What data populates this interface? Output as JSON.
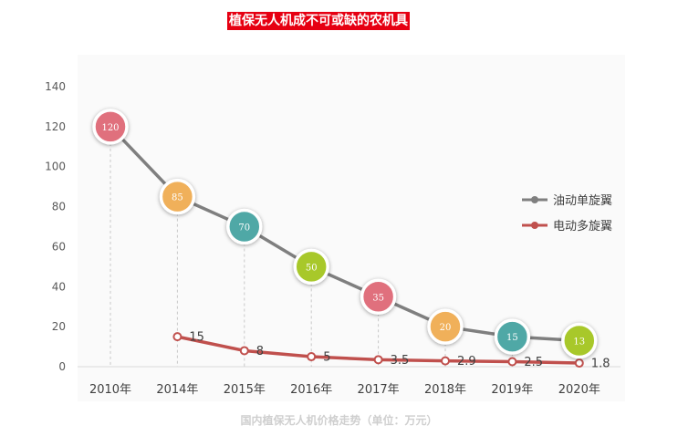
{
  "chart_data": {
    "type": "line",
    "title": "植保无人机成不可或缺的农机具",
    "caption": "国内植保无人机价格走势（单位：万元）",
    "categories": [
      "2010年",
      "2014年",
      "2015年",
      "2016年",
      "2017年",
      "2018年",
      "2019年",
      "2020年"
    ],
    "ylim": [
      0,
      140
    ],
    "yticks": [
      0,
      20,
      40,
      60,
      80,
      100,
      120,
      140
    ],
    "legend_position": "right",
    "series": [
      {
        "name": "油动单旋翼",
        "color": "#7f7f7f",
        "values": [
          120,
          85,
          70,
          50,
          35,
          20,
          15,
          13
        ],
        "labels": [
          "120",
          "85",
          "70",
          "50",
          "35",
          "20",
          "15",
          "13"
        ],
        "bubble_colors": [
          "#e0707d",
          "#f0b05a",
          "#4fa8a6",
          "#a8c82a",
          "#e0707d",
          "#f0b05a",
          "#4fa8a6",
          "#a8c82a"
        ]
      },
      {
        "name": "电动多旋翼",
        "color": "#c0504d",
        "values": [
          null,
          15,
          8,
          5,
          3.5,
          2.9,
          2.5,
          1.8
        ],
        "labels": [
          "",
          "15",
          "8",
          "5",
          "3.5",
          "2.9",
          "2.5",
          "1.8"
        ]
      }
    ]
  }
}
